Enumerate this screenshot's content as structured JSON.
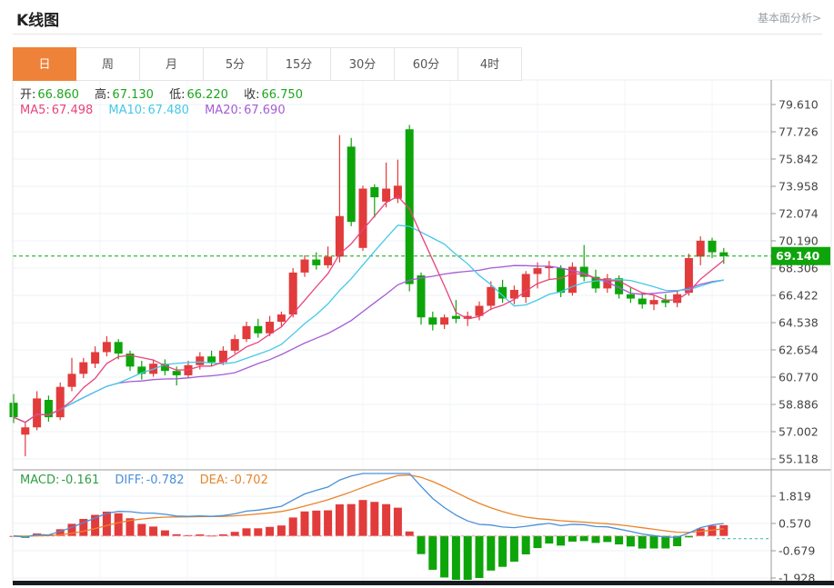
{
  "header": {
    "title": "K线图",
    "link": "基本面分析>"
  },
  "tabs": {
    "items": [
      "日",
      "周",
      "月",
      "5分",
      "15分",
      "30分",
      "60分",
      "4时"
    ],
    "selected": "日"
  },
  "quote": {
    "open_label": "开:",
    "open": "66.860",
    "high_label": "高:",
    "high": "67.130",
    "low_label": "低:",
    "low": "66.220",
    "close_label": "收:",
    "close": "66.750"
  },
  "ma_legend": {
    "ma5_label": "MA5:",
    "ma5": "67.498",
    "ma10_label": "MA10:",
    "ma10": "67.480",
    "ma20_label": "MA20:",
    "ma20": "67.690"
  },
  "macd_legend": {
    "macd_label": "MACD:",
    "macd": "-0.161",
    "diff_label": "DIFF:",
    "diff": "-0.782",
    "dea_label": "DEA:",
    "dea": "-0.702"
  },
  "colors": {
    "accent": "#ee8239",
    "up": "#e23b3b",
    "down": "#0da50a",
    "quote_green": "#1ea51e",
    "ma5": "#e8437a",
    "ma10": "#45c8e8",
    "ma20": "#a55bd6",
    "macd_text": "#2f9e44",
    "diff": "#4a90d9",
    "dea": "#e8842c",
    "badge": "#0da50a"
  },
  "chart_data": {
    "type": "candlestick",
    "title": "K线图 (daily K-line with MA5/MA10/MA20 and MACD sub-chart)",
    "legend_position": "top-left",
    "grid": true,
    "x_labels": [],
    "y_ticks": [
      79.61,
      77.726,
      75.842,
      73.958,
      72.074,
      70.19,
      68.306,
      66.422,
      64.538,
      62.654,
      60.77,
      58.886,
      57.002,
      55.118
    ],
    "macd_ticks": [
      1.819,
      0.57,
      -0.679,
      -1.928
    ],
    "current_price": 69.14,
    "indicator_values": {
      "ma5": 67.498,
      "ma10": 67.48,
      "ma20": 67.69,
      "macd": -0.161,
      "diff": -0.782,
      "dea": -0.702
    },
    "candles_format": [
      "open",
      "high",
      "low",
      "close"
    ],
    "candles": [
      [
        59.0,
        59.6,
        57.6,
        58.0
      ],
      [
        56.8,
        57.6,
        55.3,
        57.3
      ],
      [
        57.3,
        59.8,
        57.1,
        59.3
      ],
      [
        59.2,
        59.5,
        57.7,
        58.0
      ],
      [
        58.0,
        60.4,
        57.8,
        60.1
      ],
      [
        60.1,
        62.1,
        59.8,
        61.0
      ],
      [
        61.0,
        62.1,
        60.7,
        61.8
      ],
      [
        61.7,
        62.9,
        61.4,
        62.5
      ],
      [
        62.5,
        63.6,
        62.2,
        63.2
      ],
      [
        63.2,
        63.4,
        62.0,
        62.4
      ],
      [
        62.4,
        62.6,
        61.2,
        61.5
      ],
      [
        61.5,
        61.9,
        60.6,
        61.0
      ],
      [
        61.0,
        62.0,
        60.8,
        61.7
      ],
      [
        61.7,
        62.0,
        60.9,
        61.2
      ],
      [
        61.2,
        61.5,
        60.2,
        60.9
      ],
      [
        60.9,
        61.9,
        60.7,
        61.6
      ],
      [
        61.6,
        62.5,
        61.3,
        62.2
      ],
      [
        62.2,
        62.6,
        61.5,
        61.8
      ],
      [
        61.8,
        62.9,
        61.6,
        62.6
      ],
      [
        62.6,
        63.7,
        62.4,
        63.4
      ],
      [
        63.4,
        64.6,
        63.2,
        64.3
      ],
      [
        64.3,
        64.8,
        63.5,
        63.8
      ],
      [
        63.8,
        65.0,
        63.6,
        64.6
      ],
      [
        64.6,
        65.3,
        64.3,
        65.1
      ],
      [
        65.1,
        68.3,
        64.9,
        68.0
      ],
      [
        68.0,
        69.2,
        67.7,
        68.9
      ],
      [
        68.9,
        69.4,
        68.2,
        68.5
      ],
      [
        68.5,
        69.8,
        68.3,
        69.1
      ],
      [
        69.1,
        77.5,
        68.7,
        71.9
      ],
      [
        76.7,
        77.3,
        71.2,
        71.5
      ],
      [
        69.7,
        74.0,
        69.5,
        73.8
      ],
      [
        73.9,
        74.1,
        71.8,
        73.2
      ],
      [
        72.9,
        75.6,
        72.5,
        73.8
      ],
      [
        73.1,
        75.8,
        72.8,
        74.0
      ],
      [
        77.9,
        78.2,
        66.7,
        67.2
      ],
      [
        67.8,
        68.0,
        64.4,
        64.9
      ],
      [
        64.9,
        65.3,
        64.0,
        64.4
      ],
      [
        64.4,
        65.1,
        64.1,
        64.9
      ],
      [
        65.0,
        66.1,
        64.5,
        64.8
      ],
      [
        64.8,
        65.3,
        64.3,
        65.0
      ],
      [
        65.0,
        66.0,
        64.7,
        65.7
      ],
      [
        65.7,
        67.4,
        65.4,
        67.0
      ],
      [
        67.0,
        67.5,
        65.9,
        66.2
      ],
      [
        66.2,
        67.1,
        65.8,
        66.8
      ],
      [
        66.3,
        68.1,
        65.9,
        67.9
      ],
      [
        67.9,
        68.7,
        66.9,
        68.3
      ],
      [
        68.3,
        68.8,
        67.5,
        68.4
      ],
      [
        68.3,
        68.5,
        66.3,
        66.6
      ],
      [
        66.6,
        68.7,
        66.4,
        68.4
      ],
      [
        68.4,
        69.9,
        67.4,
        67.7
      ],
      [
        67.7,
        68.2,
        66.6,
        66.9
      ],
      [
        66.9,
        67.9,
        66.6,
        67.6
      ],
      [
        67.6,
        67.8,
        66.2,
        66.5
      ],
      [
        66.5,
        67.0,
        65.9,
        66.2
      ],
      [
        66.2,
        66.6,
        65.5,
        65.8
      ],
      [
        65.8,
        66.4,
        65.4,
        66.1
      ],
      [
        66.1,
        66.5,
        65.6,
        65.9
      ],
      [
        65.9,
        66.8,
        65.6,
        66.5
      ],
      [
        66.6,
        69.3,
        66.4,
        69.0
      ],
      [
        69.1,
        70.5,
        68.5,
        70.2
      ],
      [
        70.2,
        70.4,
        69.0,
        69.4
      ],
      [
        69.4,
        69.7,
        68.6,
        69.14
      ]
    ]
  }
}
